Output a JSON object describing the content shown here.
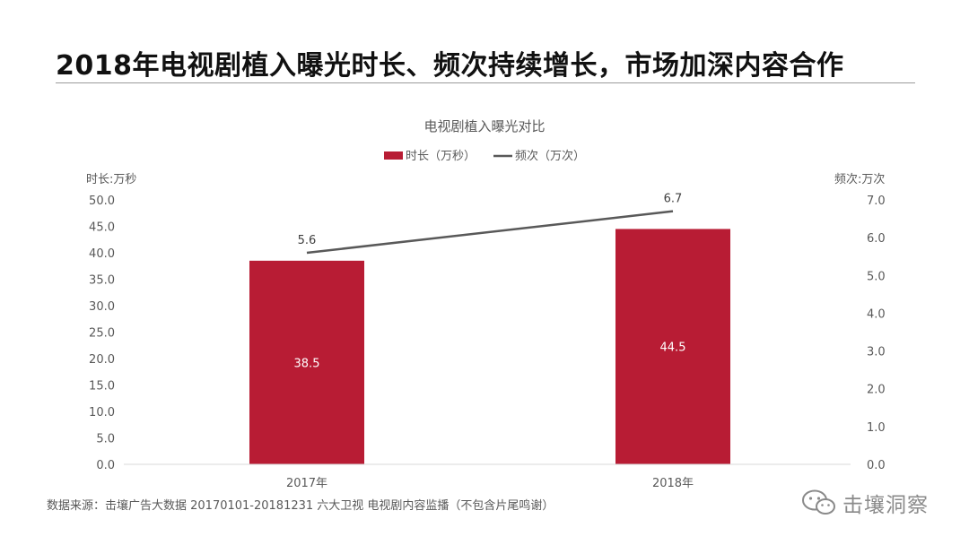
{
  "slide": {
    "title": "2018年电视剧植入曝光时长、频次持续增长，市场加深内容合作",
    "source": "数据来源：击壤广告大数据 20170101-20181231 六大卫视 电视剧内容监播（不包含片尾鸣谢）",
    "watermark": "击壤洞察",
    "watermark_icon": "wechat-icon"
  },
  "chart_data": {
    "type": "bar",
    "title": "电视剧植入曝光对比",
    "categories": [
      "2017年",
      "2018年"
    ],
    "left_axis": {
      "label": "时长:万秒",
      "range": [
        0,
        50
      ],
      "ticks": [
        "0.0",
        "5.0",
        "10.0",
        "15.0",
        "20.0",
        "25.0",
        "30.0",
        "35.0",
        "40.0",
        "45.0",
        "50.0"
      ]
    },
    "right_axis": {
      "label": "频次:万次",
      "range": [
        0,
        7
      ],
      "ticks": [
        "0.0",
        "1.0",
        "2.0",
        "3.0",
        "4.0",
        "5.0",
        "6.0",
        "7.0"
      ]
    },
    "series": [
      {
        "name": "时长（万秒）",
        "type": "bar",
        "axis": "left",
        "color": "#b81c34",
        "values": [
          38.5,
          44.5
        ],
        "labels": [
          "38.5",
          "44.5"
        ]
      },
      {
        "name": "频次（万次）",
        "type": "line",
        "axis": "right",
        "color": "#595959",
        "values": [
          5.6,
          6.7
        ],
        "labels": [
          "5.6",
          "6.7"
        ]
      }
    ],
    "legend_position": "top-center",
    "grid": false
  }
}
